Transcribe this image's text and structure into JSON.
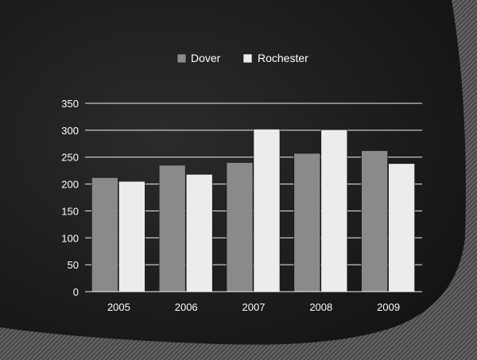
{
  "chart_data": {
    "type": "bar",
    "categories": [
      "2005",
      "2006",
      "2007",
      "2008",
      "2009"
    ],
    "series": [
      {
        "name": "Dover",
        "values": [
          212,
          235,
          240,
          257,
          262
        ],
        "color": "#8a8a8a"
      },
      {
        "name": "Rochester",
        "values": [
          205,
          218,
          302,
          301,
          238
        ],
        "color": "#ececec"
      }
    ],
    "y_ticks": [
      "0",
      "50",
      "100",
      "150",
      "200",
      "250",
      "300",
      "350"
    ],
    "ylim": [
      0,
      350
    ],
    "grid": true,
    "legend_position": "top",
    "title": "",
    "xlabel": "",
    "ylabel": ""
  },
  "colors": {
    "background": "#1c1c1c",
    "pattern": "#6e6e6e",
    "gridline": "#f0f0f0",
    "text": "#ffffff"
  }
}
